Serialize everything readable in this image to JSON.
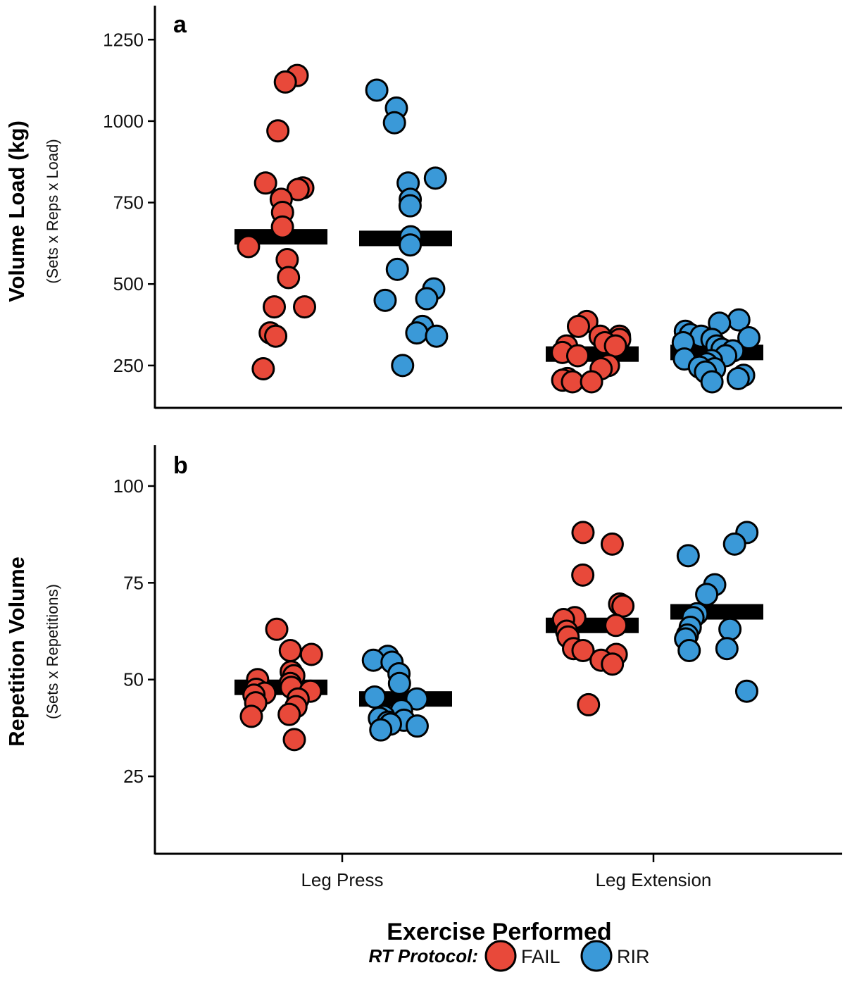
{
  "chart_data": [
    {
      "type": "scatter",
      "panel_label": "a",
      "ylabel": "Volume Load (kg)",
      "ylabel_sub": "(Sets x Reps x Load)",
      "ylim": [
        120,
        1350
      ],
      "yticks": [
        250,
        500,
        750,
        1000,
        1250
      ],
      "categories": [
        "Leg Press",
        "Leg Extension"
      ],
      "series": [
        {
          "name": "FAIL",
          "group": "Leg Press",
          "mean": 645,
          "values": [
            1140,
            1120,
            970,
            810,
            795,
            790,
            760,
            720,
            675,
            615,
            575,
            520,
            430,
            430,
            350,
            340,
            240
          ]
        },
        {
          "name": "RIR",
          "group": "Leg Press",
          "mean": 640,
          "values": [
            1095,
            1040,
            995,
            825,
            810,
            760,
            740,
            645,
            620,
            545,
            485,
            455,
            450,
            370,
            350,
            340,
            250
          ]
        },
        {
          "name": "FAIL",
          "group": "Leg Extension",
          "mean": 285,
          "values": [
            385,
            370,
            340,
            340,
            330,
            320,
            310,
            310,
            290,
            280,
            250,
            240,
            210,
            205,
            200,
            200
          ]
        },
        {
          "name": "RIR",
          "group": "Leg Extension",
          "mean": 290,
          "values": [
            390,
            380,
            355,
            345,
            340,
            335,
            330,
            320,
            310,
            300,
            295,
            280,
            270,
            265,
            255,
            245,
            240,
            230,
            220,
            210,
            200
          ]
        }
      ]
    },
    {
      "type": "scatter",
      "panel_label": "b",
      "ylabel": "Repetition Volume",
      "ylabel_sub": "(Sets x Repetitions)",
      "ylim": [
        5,
        110
      ],
      "yticks": [
        25,
        50,
        75,
        100
      ],
      "categories": [
        "Leg Press",
        "Leg Extension"
      ],
      "series": [
        {
          "name": "FAIL",
          "group": "Leg Press",
          "mean": 48,
          "values": [
            63,
            57.5,
            56.5,
            52,
            51,
            50,
            49,
            48,
            47.5,
            47,
            46.5,
            46,
            45,
            44,
            43,
            41,
            40.5,
            34.5
          ]
        },
        {
          "name": "RIR",
          "group": "Leg Press",
          "mean": 45,
          "values": [
            56,
            55,
            54.5,
            51.5,
            49,
            45.5,
            45,
            42,
            40.5,
            40,
            39.5,
            39,
            38.5,
            38,
            37
          ]
        },
        {
          "name": "FAIL",
          "group": "Leg Extension",
          "mean": 64,
          "values": [
            88,
            85,
            77,
            69.5,
            69,
            66,
            65.5,
            64,
            62.5,
            61,
            58,
            57.5,
            56.5,
            55,
            54,
            43.5
          ]
        },
        {
          "name": "RIR",
          "group": "Leg Extension",
          "mean": 67.5,
          "values": [
            88,
            85,
            82,
            74.5,
            72,
            67,
            66,
            63.5,
            63,
            61.5,
            60.5,
            58,
            57.5,
            47
          ]
        }
      ]
    }
  ],
  "xlabel": "Exercise Performed",
  "legend": {
    "title": "RT Protocol:",
    "entries": [
      {
        "label": "FAIL",
        "color": "#e8493a"
      },
      {
        "label": "RIR",
        "color": "#3a99d8"
      }
    ]
  },
  "colors": {
    "FAIL": "#e8493a",
    "RIR": "#3a99d8",
    "mean_bar": "#000000"
  }
}
